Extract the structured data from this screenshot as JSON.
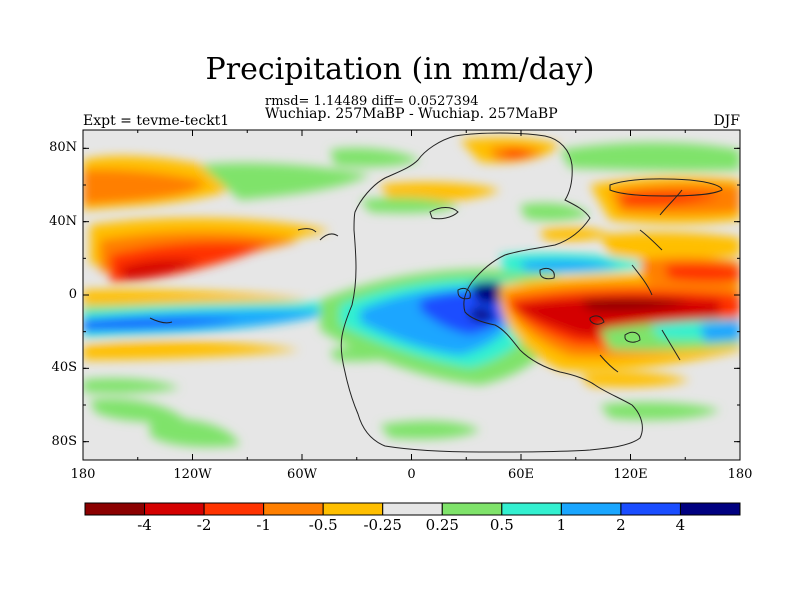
{
  "plot": {
    "title": "Precipitation (in mm/day)",
    "stats_text": "rmsd= 1.14489 diff= 0.0527394",
    "center_string": "Wuchiap. 257MaBP - Wuchiap. 257MaBP",
    "left_string": "Expt = tevme-teckt1",
    "right_string": "DJF",
    "projection": "cylindrical equidistant",
    "lon_range": [
      -180,
      180
    ],
    "lat_range": [
      -90,
      90
    ],
    "x_tick_labels": [
      "180",
      "120W",
      "60W",
      "0",
      "60E",
      "120E",
      "180"
    ],
    "y_tick_labels": [
      "80N",
      "40N",
      "0",
      "40S",
      "80S"
    ]
  },
  "colorbar": {
    "levels": [
      "-4",
      "-2",
      "-1",
      "-0.5",
      "-0.25",
      "0.25",
      "0.5",
      "1",
      "2",
      "4"
    ],
    "colors": [
      "#8b0000",
      "#d40000",
      "#ff3300",
      "#ff7f00",
      "#ffbf00",
      "#e6e6e6",
      "#7fe36a",
      "#33f0d0",
      "#1aa6ff",
      "#1a4dff",
      "#000080"
    ]
  }
}
